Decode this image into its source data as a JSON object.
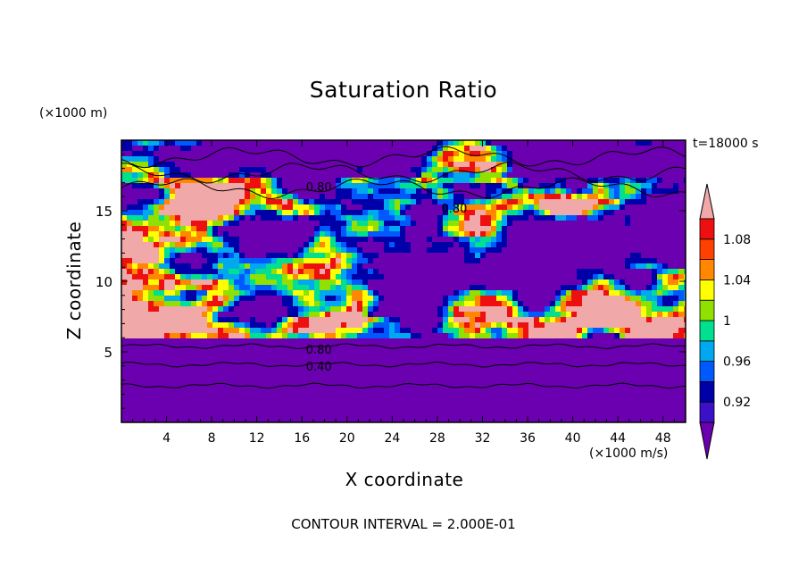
{
  "chart_data": {
    "type": "heatmap",
    "title": "Saturation Ratio",
    "xlabel": "X coordinate",
    "ylabel": "Z coordinate",
    "x_unit": "(×1000 m/s)",
    "y_unit": "(×1000 m)",
    "time_label": "t=18000 s",
    "footer": "CONTOUR INTERVAL = 2.000E-01",
    "xlim": [
      0,
      50
    ],
    "ylim": [
      0,
      20
    ],
    "x_ticks": [
      "4",
      "8",
      "12",
      "16",
      "20",
      "24",
      "28",
      "32",
      "36",
      "40",
      "44",
      "48"
    ],
    "y_ticks": [
      "5",
      "10",
      "15"
    ],
    "contour_labels": [
      {
        "text": "0.80",
        "x": 17.5,
        "z": 16.7
      },
      {
        "text": "0.80",
        "x": 29.5,
        "z": 15.2
      },
      {
        "text": "0.80",
        "x": 17.5,
        "z": 5.2
      },
      {
        "text": "0.40",
        "x": 17.5,
        "z": 4.0
      }
    ],
    "colorbar": {
      "colors": [
        "#6a00b0",
        "#3c10c8",
        "#0000a8",
        "#0058ff",
        "#00a8f0",
        "#00e090",
        "#30c800",
        "#90e000",
        "#ffff00",
        "#ffc000",
        "#ff8800",
        "#ff4000",
        "#ee1010",
        "#f0a8a8"
      ],
      "levels": [
        0.92,
        0.94,
        0.96,
        0.98,
        1.0,
        1.02,
        1.04,
        1.06,
        1.08
      ],
      "tick_labels": [
        "0.92",
        "0.96",
        "1",
        "1.04",
        "1.08"
      ]
    },
    "lower_layer_contours": [
      0.4,
      0.6,
      0.8
    ]
  }
}
